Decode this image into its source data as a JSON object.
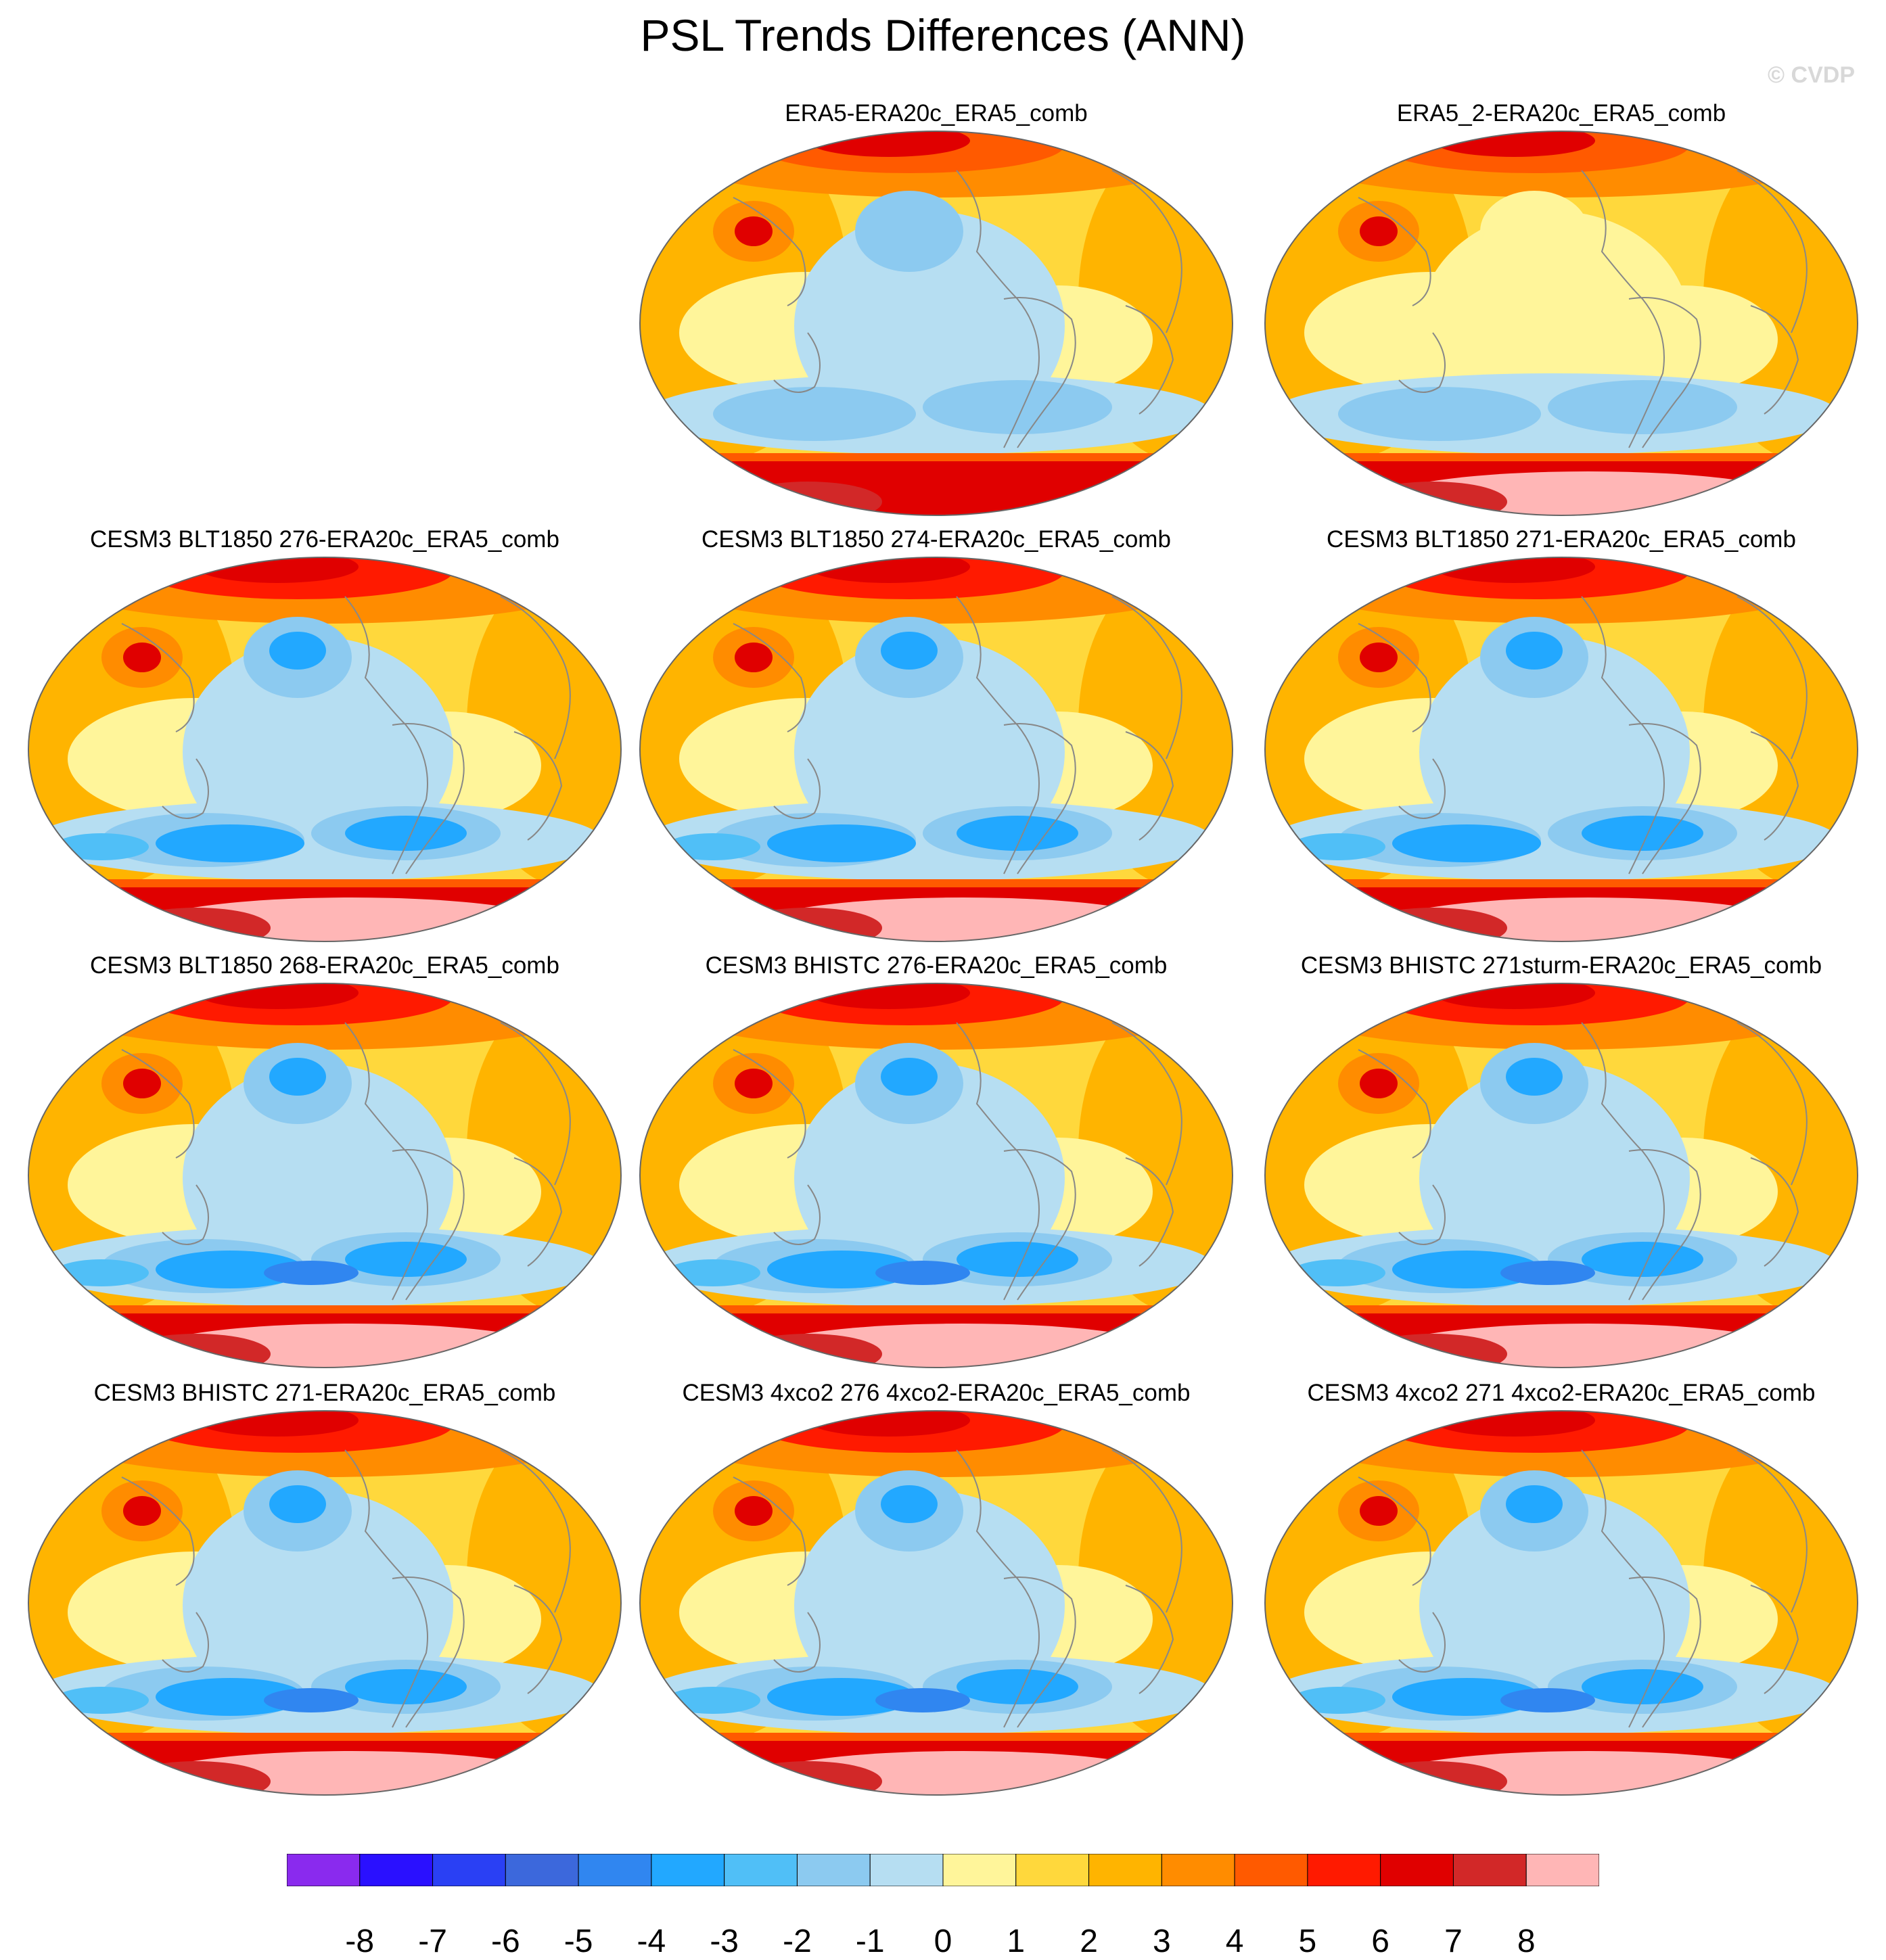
{
  "title": "PSL Trends Differences (ANN)",
  "watermark": "© CVDP",
  "colors": {
    "p8": "#ffb6b6",
    "p7": "#d22828",
    "p6": "#e00000",
    "p5": "#ff1a00",
    "p4": "#ff5a00",
    "p3": "#ff8c00",
    "p2": "#ffb400",
    "p1": "#ffd83c",
    "p0": "#fff59a",
    "n0": "#b6def2",
    "n1": "#8ccaf0",
    "n2": "#50bff7",
    "n3": "#22a8ff",
    "n4": "#3086f0",
    "n5": "#3c68dc",
    "n6": "#2a40f4",
    "n7": "#2a10ff",
    "n8": "#8a2aee"
  },
  "colorbar": {
    "labels": [
      "-8",
      "-7",
      "-6",
      "-5",
      "-4",
      "-3",
      "-2",
      "-1",
      "0",
      "1",
      "2",
      "3",
      "4",
      "5",
      "6",
      "7",
      "8"
    ],
    "fill_colors": [
      "#8a2aee",
      "#2a10ff",
      "#2a40f4",
      "#3c68dc",
      "#3086f0",
      "#22a8ff",
      "#50bff7",
      "#8ccaf0",
      "#b6def2",
      "#fff59a",
      "#ffd83c",
      "#ffb400",
      "#ff8c00",
      "#ff5a00",
      "#ff1a00",
      "#e00000",
      "#d22828",
      "#ffb6b6"
    ]
  },
  "panels": [
    {
      "title": "ERA5-ERA20c_ERA5_comb",
      "variant": "obs"
    },
    {
      "title": "ERA5_2-ERA20c_ERA5_comb",
      "variant": "obs2"
    },
    {
      "title": "CESM3 BLT1850 276-ERA20c_ERA5_comb",
      "variant": "model"
    },
    {
      "title": "CESM3 BLT1850 274-ERA20c_ERA5_comb",
      "variant": "model"
    },
    {
      "title": "CESM3 BLT1850 271-ERA20c_ERA5_comb",
      "variant": "model"
    },
    {
      "title": "CESM3 BLT1850 268-ERA20c_ERA5_comb",
      "variant": "strong"
    },
    {
      "title": "CESM3 BHISTC 276-ERA20c_ERA5_comb",
      "variant": "strong"
    },
    {
      "title": "CESM3 BHISTC 271sturm-ERA20c_ERA5_comb",
      "variant": "strong"
    },
    {
      "title": "CESM3 BHISTC 271-ERA20c_ERA5_comb",
      "variant": "strong"
    },
    {
      "title": "CESM3 4xco2 276 4xco2-ERA20c_ERA5_comb",
      "variant": "strong"
    },
    {
      "title": "CESM3 4xco2 271 4xco2-ERA20c_ERA5_comb",
      "variant": "strong"
    }
  ]
}
